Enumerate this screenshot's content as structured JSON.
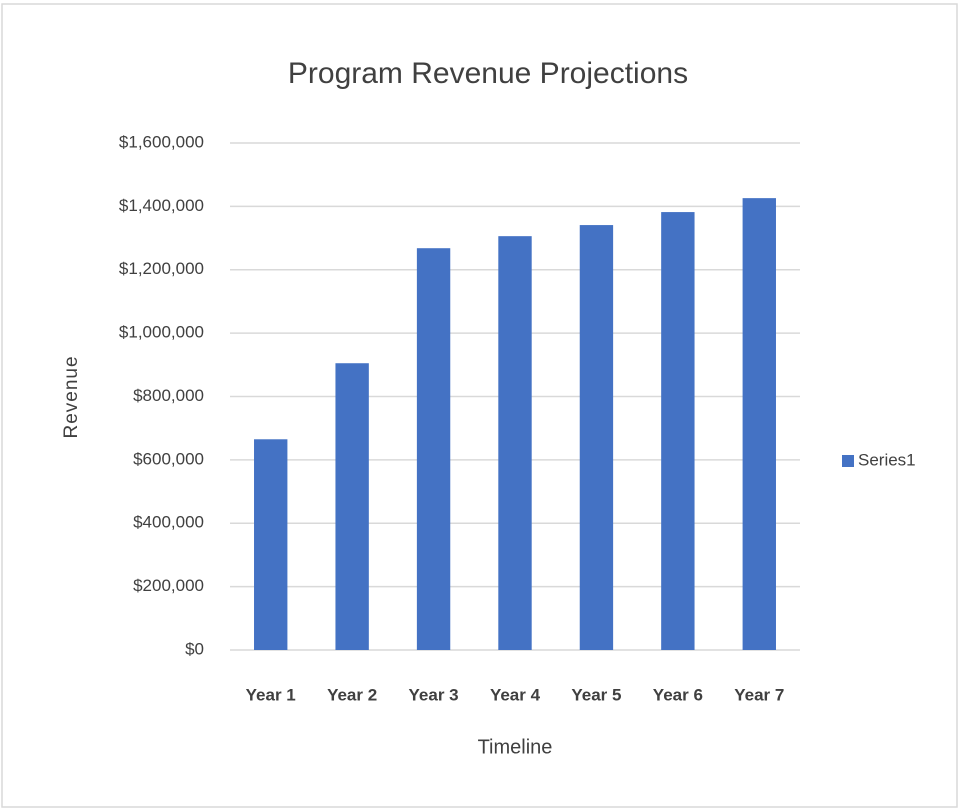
{
  "chart_data": {
    "type": "bar",
    "title": "Program Revenue Projections",
    "x_label": "Timeline",
    "y_label": "Revenue",
    "categories": [
      "Year 1",
      "Year 2",
      "Year 3",
      "Year 4",
      "Year 5",
      "Year 6",
      "Year 7"
    ],
    "series": [
      {
        "name": "Series1",
        "color": "#4472c4",
        "values": [
          665000,
          905000,
          1268000,
          1306000,
          1341000,
          1382000,
          1426000
        ]
      }
    ],
    "ylim": [
      0,
      1600000
    ],
    "yticks": [
      {
        "value": 0,
        "label": "$0"
      },
      {
        "value": 200000,
        "label": "$200,000"
      },
      {
        "value": 400000,
        "label": "$400,000"
      },
      {
        "value": 600000,
        "label": "$600,000"
      },
      {
        "value": 800000,
        "label": "$800,000"
      },
      {
        "value": 1000000,
        "label": "$1,000,000"
      },
      {
        "value": 1200000,
        "label": "$1,200,000"
      },
      {
        "value": 1400000,
        "label": "$1,400,000"
      },
      {
        "value": 1600000,
        "label": "$1,600,000"
      }
    ],
    "grid": true,
    "legend": "right"
  }
}
